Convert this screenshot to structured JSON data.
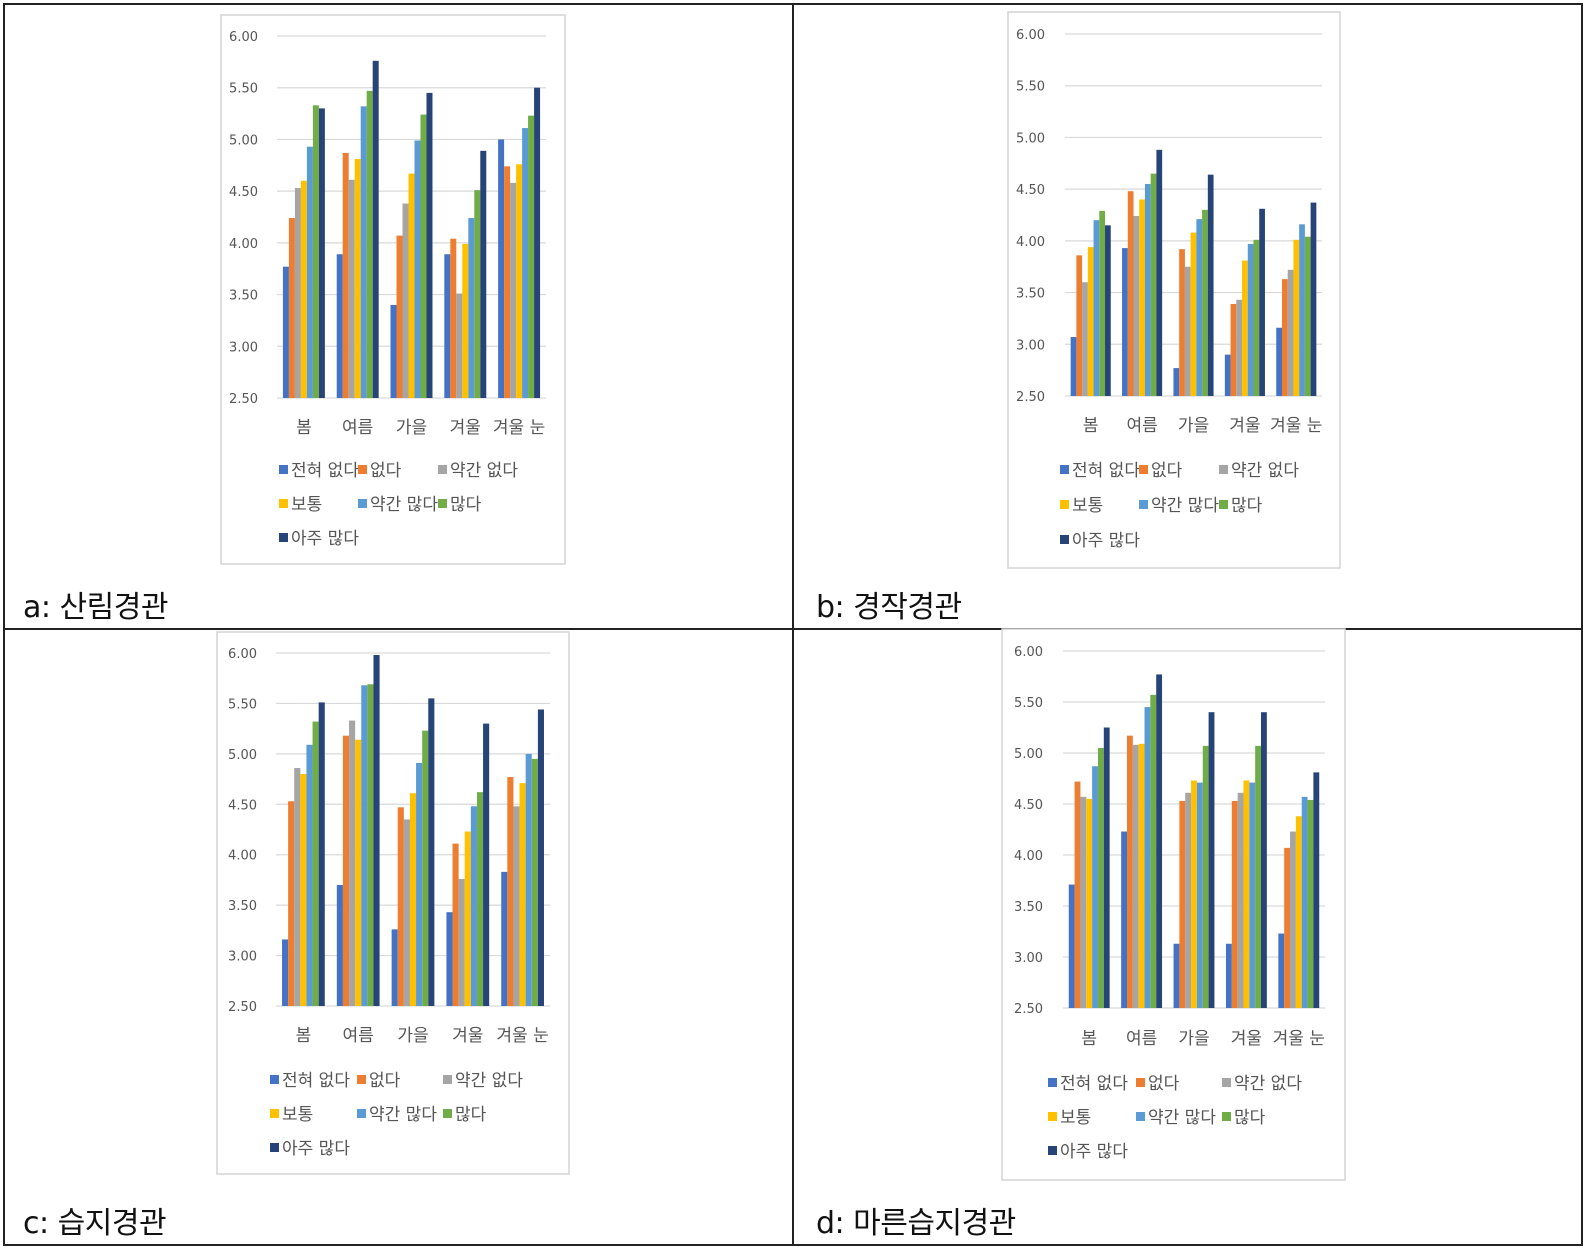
{
  "captions": {
    "a": "a:  산림경관",
    "b": "b:  경작경관",
    "c": "c:  습지경관",
    "d": "d:  마른습지경관"
  },
  "chart_data": [
    {
      "type": "bar",
      "id": "a",
      "categories": [
        "봄",
        "여름",
        "가을",
        "겨울",
        "겨울 눈"
      ],
      "ylim": [
        2.5,
        6.0
      ],
      "yticks": [
        "6.00",
        "5.50",
        "5.00",
        "4.50",
        "4.00",
        "3.50",
        "3.00",
        "2.50"
      ],
      "grid": true,
      "legend_position": "bottom",
      "series": [
        {
          "name": "전혀 없다",
          "color": "#4472C4",
          "values": [
            3.77,
            3.89,
            3.4,
            3.89,
            5.0
          ]
        },
        {
          "name": "없다",
          "color": "#ED7D31",
          "values": [
            4.24,
            4.87,
            4.07,
            4.04,
            4.74
          ]
        },
        {
          "name": "약간 없다",
          "color": "#A5A5A5",
          "values": [
            4.53,
            4.61,
            4.38,
            3.51,
            4.58
          ]
        },
        {
          "name": "보통",
          "color": "#FFC000",
          "values": [
            4.6,
            4.81,
            4.67,
            3.99,
            4.76
          ]
        },
        {
          "name": "약간 많다",
          "color": "#5B9BD5",
          "values": [
            4.93,
            5.32,
            4.99,
            4.24,
            5.11
          ]
        },
        {
          "name": "많다",
          "color": "#70AD47",
          "values": [
            5.33,
            5.47,
            5.24,
            4.51,
            5.23
          ]
        },
        {
          "name": "아주 많다",
          "color": "#264478",
          "values": [
            5.3,
            5.76,
            5.45,
            4.89,
            5.5
          ]
        }
      ]
    },
    {
      "type": "bar",
      "id": "b",
      "categories": [
        "봄",
        "여름",
        "가을",
        "겨울",
        "겨울 눈"
      ],
      "ylim": [
        2.5,
        6.0
      ],
      "yticks": [
        "6.00",
        "5.50",
        "5.00",
        "4.50",
        "4.00",
        "3.50",
        "3.00",
        "2.50"
      ],
      "grid": true,
      "legend_position": "bottom",
      "series": [
        {
          "name": "전혀 없다",
          "color": "#4472C4",
          "values": [
            3.07,
            3.93,
            2.77,
            2.9,
            3.16
          ]
        },
        {
          "name": "없다",
          "color": "#ED7D31",
          "values": [
            3.86,
            4.48,
            3.92,
            3.39,
            3.63
          ]
        },
        {
          "name": "약간 없다",
          "color": "#A5A5A5",
          "values": [
            3.6,
            4.24,
            3.75,
            3.43,
            3.72
          ]
        },
        {
          "name": "보통",
          "color": "#FFC000",
          "values": [
            3.94,
            4.4,
            4.08,
            3.81,
            4.01
          ]
        },
        {
          "name": "약간 많다",
          "color": "#5B9BD5",
          "values": [
            4.2,
            4.55,
            4.21,
            3.97,
            4.16
          ]
        },
        {
          "name": "많다",
          "color": "#70AD47",
          "values": [
            4.29,
            4.65,
            4.3,
            4.01,
            4.04
          ]
        },
        {
          "name": "아주 많다",
          "color": "#264478",
          "values": [
            4.15,
            4.88,
            4.64,
            4.31,
            4.37
          ]
        }
      ]
    },
    {
      "type": "bar",
      "id": "c",
      "categories": [
        "봄",
        "여름",
        "가을",
        "겨울",
        "겨울 눈"
      ],
      "ylim": [
        2.5,
        6.0
      ],
      "yticks": [
        "6.00",
        "5.50",
        "5.00",
        "4.50",
        "4.00",
        "3.50",
        "3.00",
        "2.50"
      ],
      "grid": true,
      "legend_position": "bottom",
      "series": [
        {
          "name": "전혀 없다",
          "color": "#4472C4",
          "values": [
            3.16,
            3.7,
            3.26,
            3.43,
            3.83
          ]
        },
        {
          "name": "없다",
          "color": "#ED7D31",
          "values": [
            4.53,
            5.18,
            4.47,
            4.11,
            4.77
          ]
        },
        {
          "name": "약간 없다",
          "color": "#A5A5A5",
          "values": [
            4.86,
            5.33,
            4.35,
            3.76,
            4.48
          ]
        },
        {
          "name": "보통",
          "color": "#FFC000",
          "values": [
            4.8,
            5.14,
            4.61,
            4.23,
            4.71
          ]
        },
        {
          "name": "약간 많다",
          "color": "#5B9BD5",
          "values": [
            5.09,
            5.68,
            4.91,
            4.48,
            5.0
          ]
        },
        {
          "name": "많다",
          "color": "#70AD47",
          "values": [
            5.32,
            5.69,
            5.23,
            4.62,
            4.95
          ]
        },
        {
          "name": "아주 많다",
          "color": "#264478",
          "values": [
            5.51,
            5.98,
            5.55,
            5.3,
            5.44
          ]
        }
      ]
    },
    {
      "type": "bar",
      "id": "d",
      "categories": [
        "봄",
        "여름",
        "가을",
        "겨울",
        "겨울 눈"
      ],
      "ylim": [
        2.5,
        6.0
      ],
      "yticks": [
        "6.00",
        "5.50",
        "5.00",
        "4.50",
        "4.00",
        "3.50",
        "3.00",
        "2.50"
      ],
      "grid": true,
      "legend_position": "bottom",
      "series": [
        {
          "name": "전혀 없다",
          "color": "#4472C4",
          "values": [
            3.71,
            4.23,
            3.13,
            3.13,
            3.23
          ]
        },
        {
          "name": "없다",
          "color": "#ED7D31",
          "values": [
            4.72,
            5.17,
            4.53,
            4.53,
            4.07
          ]
        },
        {
          "name": "약간 없다",
          "color": "#A5A5A5",
          "values": [
            4.57,
            5.08,
            4.61,
            4.61,
            4.23
          ]
        },
        {
          "name": "보통",
          "color": "#FFC000",
          "values": [
            4.55,
            5.09,
            4.73,
            4.73,
            4.38
          ]
        },
        {
          "name": "약간 많다",
          "color": "#5B9BD5",
          "values": [
            4.87,
            5.45,
            4.71,
            4.71,
            4.57
          ]
        },
        {
          "name": "많다",
          "color": "#70AD47",
          "values": [
            5.05,
            5.57,
            5.07,
            5.07,
            4.54
          ]
        },
        {
          "name": "아주 많다",
          "color": "#264478",
          "values": [
            5.25,
            5.77,
            5.4,
            5.4,
            4.81
          ]
        }
      ]
    }
  ]
}
